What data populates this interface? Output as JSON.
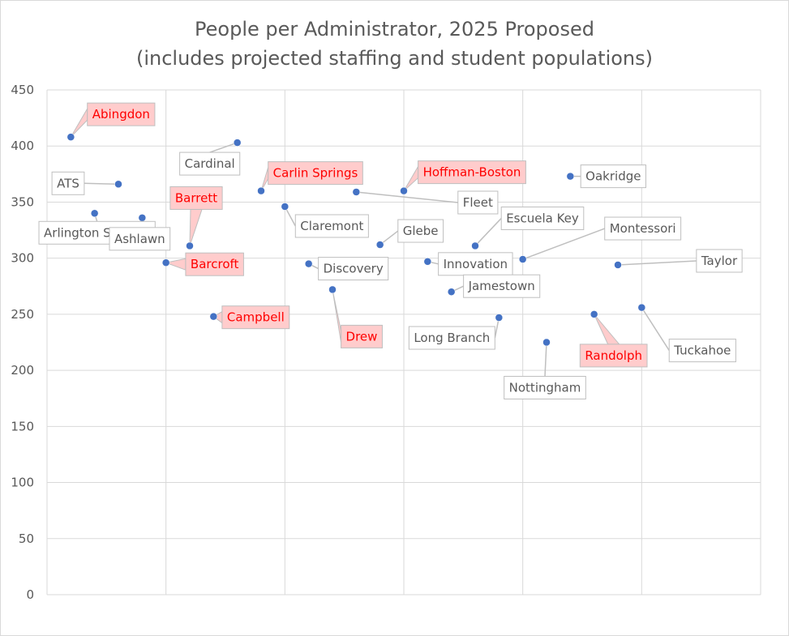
{
  "chart_data": {
    "type": "scatter",
    "title": [
      "People per Administrator, 2025 Proposed",
      "(includes projected staffing and student populations)"
    ],
    "xlabel": "",
    "ylabel": "",
    "xlim": [
      0,
      30
    ],
    "ylim": [
      0,
      450
    ],
    "yticks": [
      0,
      50,
      100,
      150,
      200,
      250,
      300,
      350,
      400,
      450
    ],
    "grid": true,
    "legend": "none",
    "marker_color": "#4472c4",
    "highlight_text_color": "#ff0000",
    "highlight_fill": "#ffcccc",
    "normal_text_color": "#595959",
    "points": [
      {
        "name": "Abingdon",
        "x": 1,
        "y": 408,
        "highlight": true
      },
      {
        "name": "ATS",
        "x": 3,
        "y": 366,
        "highlight": false
      },
      {
        "name": "Arlington Science",
        "x": 2,
        "y": 340,
        "highlight": false
      },
      {
        "name": "Ashlawn",
        "x": 4,
        "y": 336,
        "highlight": false
      },
      {
        "name": "Barrett",
        "x": 6,
        "y": 311,
        "highlight": true
      },
      {
        "name": "Barcroft",
        "x": 5,
        "y": 296,
        "highlight": true
      },
      {
        "name": "Cardinal",
        "x": 8,
        "y": 403,
        "highlight": false
      },
      {
        "name": "Campbell",
        "x": 7,
        "y": 248,
        "highlight": true
      },
      {
        "name": "Carlin Springs",
        "x": 9,
        "y": 360,
        "highlight": true
      },
      {
        "name": "Claremont",
        "x": 10,
        "y": 346,
        "highlight": false
      },
      {
        "name": "Discovery",
        "x": 11,
        "y": 295,
        "highlight": false
      },
      {
        "name": "Drew",
        "x": 12,
        "y": 272,
        "highlight": true
      },
      {
        "name": "Fleet",
        "x": 13,
        "y": 359,
        "highlight": false
      },
      {
        "name": "Glebe",
        "x": 14,
        "y": 312,
        "highlight": false
      },
      {
        "name": "Hoffman-Boston",
        "x": 15,
        "y": 360,
        "highlight": true
      },
      {
        "name": "Innovation",
        "x": 16,
        "y": 297,
        "highlight": false
      },
      {
        "name": "Jamestown",
        "x": 17,
        "y": 270,
        "highlight": false
      },
      {
        "name": "Escuela Key",
        "x": 18,
        "y": 311,
        "highlight": false
      },
      {
        "name": "Long Branch",
        "x": 19,
        "y": 247,
        "highlight": false
      },
      {
        "name": "Montessori",
        "x": 20,
        "y": 299,
        "highlight": false
      },
      {
        "name": "Nottingham",
        "x": 21,
        "y": 225,
        "highlight": false
      },
      {
        "name": "Oakridge",
        "x": 22,
        "y": 373,
        "highlight": false
      },
      {
        "name": "Randolph",
        "x": 23,
        "y": 250,
        "highlight": true
      },
      {
        "name": "Taylor",
        "x": 24,
        "y": 294,
        "highlight": false
      },
      {
        "name": "Tuckahoe",
        "x": 25,
        "y": 256,
        "highlight": false
      }
    ]
  }
}
